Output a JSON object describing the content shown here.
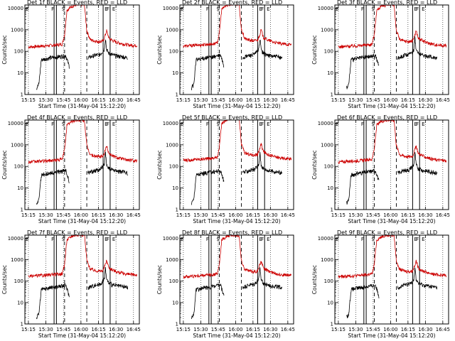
{
  "panel_titles": [
    "Det 1f BLACK = Events, RED = LLD",
    "Det 2f BLACK = Events, RED = LLD",
    "Det 3f BLACK = Events, RED = LLD",
    "Det 4f BLACK = Events, RED = LLD",
    "Det 5f BLACK = Events, RED = LLD",
    "Det 6f BLACK = Events, RED = LLD",
    "Det 7f BLACK = Events, RED = LLD",
    "Det 8f BLACK = Events, RED = LLD",
    "Det 9f BLACK = Events, RED = LLD"
  ],
  "xlabel": "Start Time (31-May-04 15:12:20)",
  "ylabel": "Counts/sec",
  "colors": {
    "events": "#000000",
    "lld": "#cc0000",
    "background": "#ffffff"
  },
  "chart_data": {
    "type": "line",
    "layout": "3x3 grid of panels, identical axes",
    "xlabel": "Start Time (31-May-04 15:12:20)",
    "ylabel": "Counts/sec",
    "x_ticks": [
      "15:15",
      "15:30",
      "15:45",
      "16:00",
      "16:15",
      "16:30",
      "16:45"
    ],
    "y_ticks": [
      "1",
      "10",
      "100",
      "1000",
      "10000"
    ],
    "yscale": "log",
    "xlim": [
      "15:12",
      "16:50"
    ],
    "ylim": [
      1,
      14000
    ],
    "grid": "dotted vertical lines at each x tick",
    "markers": {
      "solid_vertical": [
        "15:37",
        "15:39",
        "16:19",
        "16:25"
      ],
      "dashed_vertical": [
        "15:46",
        "16:05"
      ],
      "corner_labels": [
        "E",
        "F",
        "S",
        "E",
        "F",
        "E"
      ]
    },
    "series": [
      {
        "name": "Events",
        "color": "black",
        "x": [
          "15:22",
          "15:24",
          "15:26",
          "15:30",
          "15:34",
          "15:37",
          "15:40",
          "15:44",
          "15:47",
          "15:50",
          "16:06",
          "16:08",
          "16:12",
          "16:16",
          "16:20",
          "16:21",
          "16:22",
          "16:24",
          "16:28",
          "16:32",
          "16:36",
          "16:40"
        ],
        "y": [
          2,
          3,
          40,
          45,
          50,
          52,
          55,
          60,
          65,
          20,
          50,
          55,
          65,
          70,
          120,
          400,
          120,
          80,
          65,
          60,
          55,
          50
        ]
      },
      {
        "name": "LLD",
        "color": "red",
        "x": [
          "15:15",
          "15:20",
          "15:25",
          "15:30",
          "15:35",
          "15:40",
          "15:44",
          "15:46",
          "15:48",
          "15:52",
          "15:56",
          "16:00",
          "16:03",
          "16:05",
          "16:08",
          "16:12",
          "16:16",
          "16:19",
          "16:21",
          "16:22",
          "16:24",
          "16:28",
          "16:32",
          "16:36",
          "16:40",
          "16:45",
          "16:48"
        ],
        "y": [
          160,
          165,
          175,
          180,
          190,
          200,
          215,
          600,
          8000,
          12000,
          14000,
          14000,
          14000,
          900,
          350,
          300,
          280,
          300,
          600,
          900,
          400,
          300,
          250,
          220,
          200,
          190,
          185
        ]
      }
    ]
  }
}
